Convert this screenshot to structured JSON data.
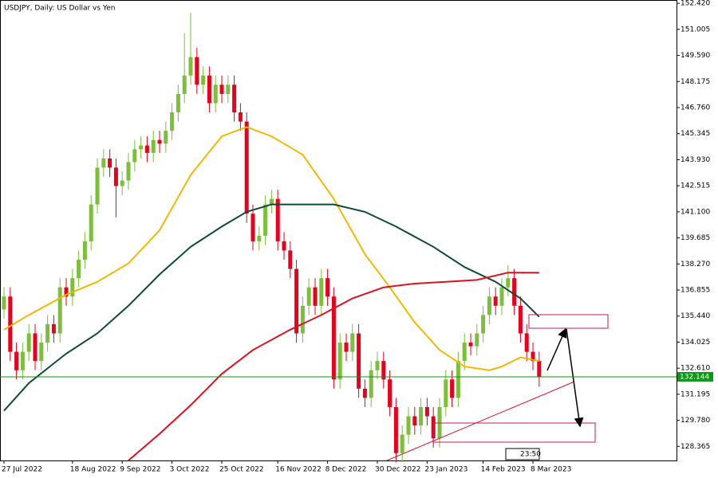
{
  "chart_data": {
    "type": "candlestick",
    "title": "USDJPY, Daily:  US Dollar vs Yen",
    "categories": [
      "27 Jul 2022",
      null,
      null,
      null,
      null,
      null,
      null,
      null,
      null,
      null,
      null,
      "18 Aug 2022",
      null,
      null,
      null,
      null,
      null,
      null,
      null,
      "9 Sep 2022",
      null,
      null,
      null,
      null,
      null,
      null,
      null,
      "3 Oct 2022",
      null,
      null,
      null,
      null,
      null,
      null,
      null,
      "25 Oct 2022",
      null,
      null,
      null,
      null,
      null,
      null,
      null,
      null,
      "16 Nov 2022",
      null,
      null,
      null,
      null,
      null,
      null,
      null,
      "8 Dec 2022",
      null,
      null,
      null,
      null,
      null,
      null,
      null,
      "30 Dec 2022",
      null,
      null,
      null,
      null,
      null,
      null,
      null,
      "23 Jan 2023",
      null,
      null,
      null,
      null,
      null,
      null,
      null,
      null,
      "14 Feb 2023",
      null,
      null,
      null,
      null,
      null,
      null,
      null,
      "8 Mar 2023",
      null
    ],
    "open": [
      135.8,
      136.5,
      133.5,
      132.5,
      133.5,
      134.5,
      133.0,
      134.0,
      135.0,
      134.5,
      137.0,
      136.5,
      137.5,
      138.5,
      139.5,
      141.5,
      143.5,
      144.0,
      143.5,
      142.5,
      142.8,
      143.8,
      144.5,
      144.7,
      144.3,
      145.0,
      144.8,
      145.5,
      146.5,
      147.5,
      148.5,
      149.5,
      148.0,
      148.5,
      147.0,
      148.0,
      147.5,
      148.0,
      146.5,
      146.0,
      141.0,
      139.5,
      139.8,
      141.5,
      141.8,
      139.5,
      139.0,
      138.0,
      134.5,
      136.0,
      137.0,
      136.0,
      137.5,
      136.5,
      132.0,
      134.0,
      133.5,
      134.5,
      131.5,
      131.0,
      132.5,
      133.0,
      132.0,
      130.5,
      128.0,
      129.0,
      130.0,
      129.5,
      130.5,
      130.0,
      128.8,
      130.5,
      132.0,
      131.0,
      133.0,
      134.0,
      133.8,
      134.5,
      135.5,
      136.5,
      136.0,
      137.0,
      137.5,
      136.0,
      134.5,
      133.5,
      133.0
    ],
    "high": [
      137.0,
      137.0,
      134.0,
      134.0,
      135.0,
      135.0,
      134.5,
      135.5,
      135.5,
      137.5,
      137.5,
      138.0,
      139.0,
      140.0,
      142.0,
      144.0,
      144.5,
      144.5,
      144.0,
      143.3,
      144.3,
      145.0,
      145.2,
      145.2,
      145.5,
      145.5,
      146.0,
      147.0,
      148.0,
      150.8,
      151.9,
      150.0,
      149.0,
      149.0,
      148.5,
      148.5,
      148.5,
      148.5,
      147.0,
      146.5,
      141.5,
      140.3,
      142.0,
      142.3,
      142.3,
      140.0,
      139.5,
      138.5,
      136.5,
      137.5,
      137.5,
      138.0,
      138.0,
      137.0,
      134.5,
      134.5,
      135.0,
      135.0,
      132.0,
      133.0,
      133.5,
      133.5,
      132.5,
      131.0,
      129.5,
      130.5,
      130.5,
      131.0,
      131.0,
      130.5,
      131.0,
      132.5,
      132.5,
      133.5,
      134.5,
      134.5,
      135.0,
      136.0,
      137.0,
      137.0,
      137.5,
      138.2,
      138.0,
      136.5,
      135.0,
      134.0,
      133.5
    ],
    "low": [
      135.3,
      133.0,
      132.0,
      132.0,
      133.0,
      132.5,
      132.5,
      133.5,
      134.0,
      134.0,
      136.0,
      136.0,
      137.0,
      138.0,
      139.0,
      141.0,
      143.0,
      143.0,
      140.8,
      142.0,
      142.3,
      143.3,
      144.0,
      143.8,
      143.8,
      144.3,
      144.3,
      145.0,
      146.0,
      147.0,
      148.0,
      147.5,
      147.5,
      146.5,
      146.5,
      147.0,
      147.0,
      146.0,
      145.5,
      140.5,
      139.0,
      139.0,
      139.3,
      141.0,
      139.0,
      138.5,
      137.5,
      134.0,
      134.0,
      135.5,
      135.5,
      135.5,
      136.0,
      131.5,
      131.5,
      133.0,
      133.0,
      131.0,
      130.5,
      130.5,
      132.0,
      131.5,
      130.0,
      127.5,
      127.5,
      128.5,
      129.0,
      129.0,
      129.5,
      128.3,
      128.3,
      130.0,
      130.5,
      130.5,
      132.5,
      133.3,
      133.3,
      134.0,
      135.0,
      135.5,
      135.5,
      136.5,
      135.5,
      134.0,
      133.0,
      132.5,
      131.6
    ],
    "close": [
      136.5,
      133.5,
      132.5,
      133.5,
      134.5,
      133.0,
      134.0,
      135.0,
      134.5,
      137.0,
      136.5,
      137.5,
      138.5,
      139.5,
      141.5,
      143.5,
      144.0,
      143.5,
      142.5,
      142.8,
      143.8,
      144.5,
      144.7,
      144.3,
      145.0,
      144.8,
      145.5,
      146.5,
      147.5,
      148.5,
      149.5,
      148.0,
      148.5,
      147.0,
      148.0,
      147.5,
      148.0,
      146.5,
      146.0,
      141.0,
      139.5,
      139.8,
      141.5,
      141.8,
      139.5,
      139.0,
      138.0,
      134.5,
      136.0,
      137.0,
      136.0,
      137.5,
      136.5,
      132.0,
      134.0,
      133.5,
      134.5,
      131.5,
      131.0,
      132.5,
      133.0,
      132.0,
      130.5,
      128.0,
      129.0,
      130.0,
      129.5,
      130.5,
      130.0,
      128.8,
      130.5,
      132.0,
      131.0,
      133.0,
      134.0,
      133.8,
      134.5,
      135.5,
      136.5,
      136.0,
      137.0,
      137.5,
      136.0,
      134.5,
      133.5,
      133.0,
      132.144
    ],
    "up_color": "#7cbf3a",
    "down_color": "#e8001c",
    "ylim": [
      127.6,
      152.6
    ],
    "yticks": [
      {
        "value": 152.42,
        "label": "152.420"
      },
      151.005,
      {
        "value": 149.59,
        "label": "149.590"
      },
      148.175,
      {
        "value": 146.76,
        "label": "146.760"
      },
      145.345,
      {
        "value": 143.93,
        "label": "143.930"
      },
      142.515,
      {
        "value": 141.1,
        "label": "141.100"
      },
      139.685,
      {
        "value": 138.27,
        "label": "138.270"
      },
      136.855,
      {
        "value": 135.44,
        "label": "135.440"
      },
      134.025,
      {
        "value": 132.61,
        "label": "132.610"
      },
      131.195,
      {
        "value": 129.78,
        "label": "129.780"
      },
      128.365
    ],
    "last_price": 132.144,
    "last_price_color": "#109618",
    "overlays": [
      {
        "color": "#f5b800",
        "x": [
          0,
          4,
          10,
          15,
          20,
          25,
          30,
          35,
          39,
          43,
          48,
          53,
          58,
          62,
          66,
          70,
          74,
          78,
          80,
          83,
          86
        ],
        "values": [
          134.7,
          135.5,
          136.6,
          137.3,
          138.3,
          140.1,
          143.1,
          145.2,
          145.7,
          145.2,
          144.2,
          141.8,
          138.8,
          137.0,
          135.1,
          133.6,
          132.7,
          132.5,
          132.7,
          133.2,
          133.0
        ]
      },
      {
        "color": "#0d4a3a",
        "x": [
          0,
          4,
          10,
          15,
          20,
          25,
          30,
          35,
          39,
          43,
          48,
          53,
          58,
          63,
          69,
          74,
          79,
          83,
          86
        ],
        "values": [
          130.3,
          131.8,
          133.4,
          134.5,
          136.0,
          137.7,
          139.2,
          140.3,
          141.1,
          141.5,
          141.5,
          141.5,
          141.1,
          140.3,
          139.2,
          138.1,
          137.3,
          136.4,
          135.4
        ]
      },
      {
        "color": "#e0101e",
        "x": [
          20,
          25,
          30,
          35,
          40,
          46,
          51,
          56,
          61,
          66,
          71,
          76,
          81,
          86
        ],
        "values": [
          127.6,
          129.05,
          130.6,
          132.3,
          133.6,
          134.7,
          135.5,
          136.4,
          137.0,
          137.2,
          137.3,
          137.4,
          137.8,
          137.8
        ]
      }
    ],
    "timer_label": "23:50"
  }
}
